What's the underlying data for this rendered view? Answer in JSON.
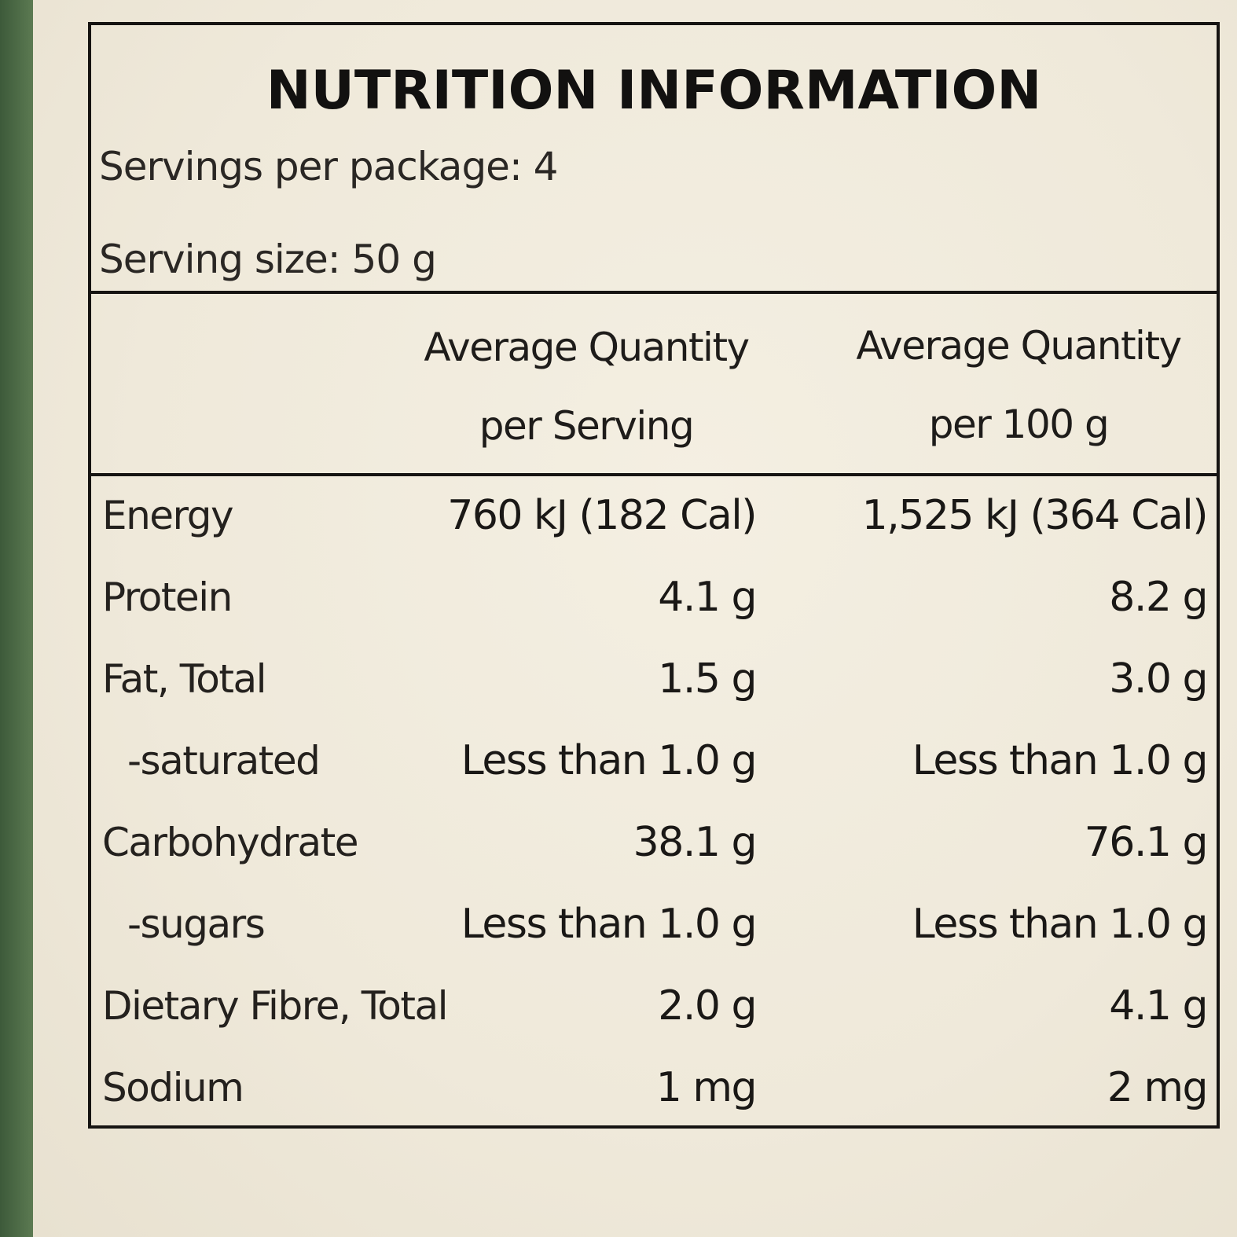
{
  "label": {
    "title": "NUTRITION INFORMATION",
    "servings_per_package": "Servings per package: 4",
    "serving_size": "Serving size: 50 g",
    "columns": {
      "per_serving_line1": "Average Quantity",
      "per_serving_line2": "per Serving",
      "per_100g_line1": "Average Quantity",
      "per_100g_line2": "per 100 g"
    },
    "rows": [
      {
        "name": "Energy",
        "per_serving": "760 kJ (182 Cal)",
        "per_100g": "1,525 kJ (364 Cal)"
      },
      {
        "name": "Protein",
        "per_serving": "4.1 g",
        "per_100g": "8.2 g"
      },
      {
        "name": "Fat, Total",
        "per_serving": "1.5 g",
        "per_100g": "3.0 g"
      },
      {
        "name": "-saturated",
        "per_serving": "Less than 1.0 g",
        "per_100g": "Less than 1.0 g"
      },
      {
        "name": "Carbohydrate",
        "per_serving": "38.1 g",
        "per_100g": "76.1 g"
      },
      {
        "name": "-sugars",
        "per_serving": "Less than 1.0 g",
        "per_100g": "Less than 1.0 g"
      },
      {
        "name": "Dietary Fibre, Total",
        "per_serving": "2.0 g",
        "per_100g": "4.1 g"
      },
      {
        "name": "Sodium",
        "per_serving": "1 mg",
        "per_100g": "2 mg"
      }
    ]
  },
  "colors": {
    "background": "#efe9da",
    "border": "#161412",
    "strip": "#4f6d48"
  }
}
